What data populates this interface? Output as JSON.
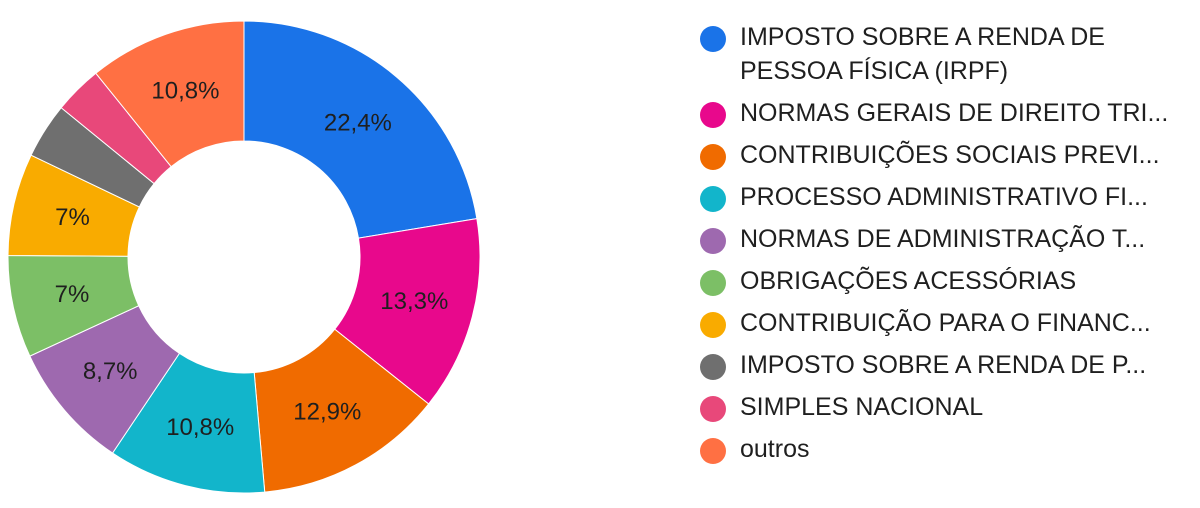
{
  "chart_data": {
    "type": "pie",
    "subtype": "donut",
    "title": "",
    "legend_position": "right",
    "series": [
      {
        "name": "IMPOSTO SOBRE A RENDA DE PESSOA FÍSICA (IRPF)",
        "value": 22.4,
        "label": "22,4%",
        "color": "#1a73e8"
      },
      {
        "name": "NORMAS GERAIS DE DIREITO TRI...",
        "value": 13.3,
        "label": "13,3%",
        "color": "#e8088c"
      },
      {
        "name": "CONTRIBUIÇÕES SOCIAIS PREVI...",
        "value": 12.9,
        "label": "12,9%",
        "color": "#f06b00"
      },
      {
        "name": "PROCESSO ADMINISTRATIVO FI...",
        "value": 10.8,
        "label": "10,8%",
        "color": "#12b5cb"
      },
      {
        "name": "NORMAS DE ADMINISTRAÇÃO T...",
        "value": 8.7,
        "label": "8,7%",
        "color": "#9e69af"
      },
      {
        "name": "OBRIGAÇÕES ACESSÓRIAS",
        "value": 7.0,
        "label": "7%",
        "color": "#7cbf66"
      },
      {
        "name": "CONTRIBUIÇÃO PARA O FINANC...",
        "value": 7.0,
        "label": "7%",
        "color": "#f9ab00"
      },
      {
        "name": "IMPOSTO SOBRE A RENDA DE P...",
        "value": 3.8,
        "label": "",
        "color": "#6f6f6f"
      },
      {
        "name": "SIMPLES NACIONAL",
        "value": 3.3,
        "label": "",
        "color": "#e8487a"
      },
      {
        "name": "outros",
        "value": 10.8,
        "label": "10,8%",
        "color": "#ff7043"
      }
    ]
  }
}
